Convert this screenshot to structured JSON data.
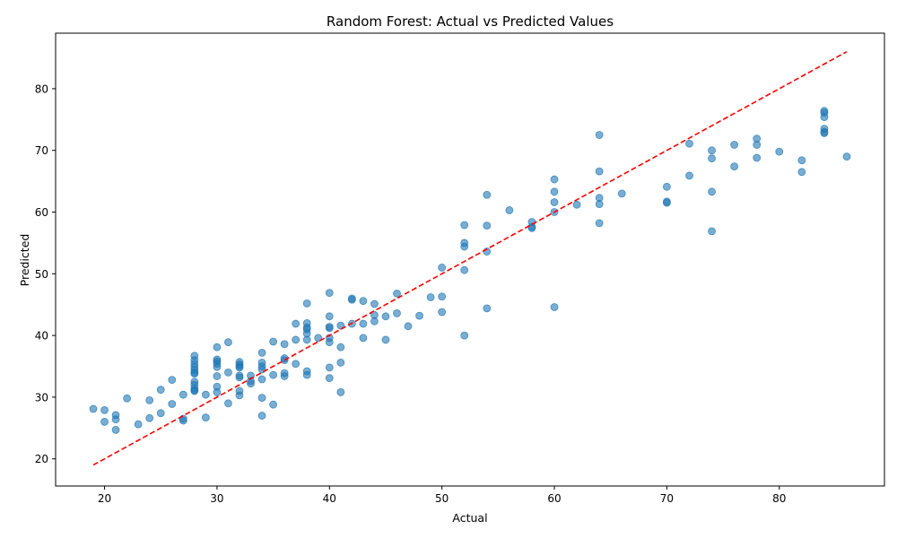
{
  "chart_data": {
    "type": "scatter",
    "title": "Random Forest: Actual vs Predicted Values",
    "xlabel": "Actual",
    "ylabel": "Predicted",
    "xlim": [
      15.65,
      89.35
    ],
    "ylim": [
      15.6,
      89.0
    ],
    "x_ticks": [
      20,
      30,
      40,
      50,
      60,
      70,
      80
    ],
    "y_ticks": [
      20,
      30,
      40,
      50,
      60,
      70,
      80
    ],
    "grid": false,
    "legend": "none",
    "colors": {
      "points": "#1f77b4",
      "reference_line": "#ff0000"
    },
    "reference_line": {
      "from": [
        19,
        19
      ],
      "to": [
        86,
        86
      ],
      "style": "dashed"
    },
    "points": [
      [
        19,
        28.1
      ],
      [
        20,
        27.9
      ],
      [
        20,
        26.0
      ],
      [
        21,
        27.1
      ],
      [
        21,
        26.4
      ],
      [
        21,
        24.7
      ],
      [
        22,
        29.8
      ],
      [
        23,
        25.6
      ],
      [
        24,
        29.5
      ],
      [
        24,
        26.6
      ],
      [
        25,
        31.2
      ],
      [
        25,
        27.4
      ],
      [
        26,
        32.8
      ],
      [
        26,
        28.9
      ],
      [
        27,
        30.4
      ],
      [
        27,
        26.5
      ],
      [
        27,
        26.2
      ],
      [
        28,
        36.7
      ],
      [
        28,
        36.0
      ],
      [
        28,
        35.4
      ],
      [
        28,
        34.9
      ],
      [
        28,
        34.4
      ],
      [
        28,
        34.0
      ],
      [
        28,
        33.8
      ],
      [
        28,
        32.5
      ],
      [
        28,
        32.0
      ],
      [
        28,
        31.4
      ],
      [
        28,
        31.1
      ],
      [
        28,
        31.0
      ],
      [
        29,
        30.4
      ],
      [
        29,
        26.7
      ],
      [
        30,
        38.1
      ],
      [
        30,
        36.1
      ],
      [
        30,
        35.8
      ],
      [
        30,
        35.4
      ],
      [
        30,
        34.9
      ],
      [
        30,
        33.4
      ],
      [
        30,
        31.7
      ],
      [
        30,
        30.8
      ],
      [
        31,
        38.9
      ],
      [
        31,
        34.0
      ],
      [
        31,
        29.0
      ],
      [
        32,
        35.7
      ],
      [
        32,
        35.3
      ],
      [
        32,
        35.0
      ],
      [
        32,
        34.8
      ],
      [
        32,
        33.5
      ],
      [
        32,
        33.2
      ],
      [
        32,
        31.0
      ],
      [
        32,
        30.3
      ],
      [
        33,
        33.5
      ],
      [
        33,
        32.6
      ],
      [
        33,
        32.2
      ],
      [
        34,
        37.2
      ],
      [
        34,
        35.6
      ],
      [
        34,
        35.0
      ],
      [
        34,
        34.5
      ],
      [
        34,
        32.9
      ],
      [
        34,
        29.9
      ],
      [
        34,
        27.0
      ],
      [
        35,
        39.0
      ],
      [
        35,
        33.6
      ],
      [
        35,
        28.8
      ],
      [
        36,
        38.6
      ],
      [
        36,
        36.3
      ],
      [
        36,
        36.0
      ],
      [
        36,
        33.9
      ],
      [
        36,
        33.4
      ],
      [
        37,
        41.9
      ],
      [
        37,
        39.3
      ],
      [
        37,
        35.4
      ],
      [
        38,
        45.2
      ],
      [
        38,
        42.0
      ],
      [
        38,
        41.3
      ],
      [
        38,
        41.0
      ],
      [
        38,
        40.3
      ],
      [
        38,
        39.3
      ],
      [
        38,
        34.2
      ],
      [
        38,
        33.6
      ],
      [
        39,
        39.6
      ],
      [
        40,
        46.9
      ],
      [
        40,
        43.1
      ],
      [
        40,
        41.4
      ],
      [
        40,
        41.2
      ],
      [
        40,
        39.6
      ],
      [
        40,
        38.9
      ],
      [
        40,
        34.8
      ],
      [
        40,
        33.1
      ],
      [
        41,
        41.6
      ],
      [
        41,
        38.1
      ],
      [
        41,
        35.6
      ],
      [
        41,
        30.8
      ],
      [
        42,
        46.0
      ],
      [
        42,
        45.8
      ],
      [
        42,
        41.9
      ],
      [
        43,
        45.6
      ],
      [
        43,
        41.9
      ],
      [
        43,
        39.6
      ],
      [
        44,
        45.1
      ],
      [
        44,
        43.3
      ],
      [
        44,
        42.3
      ],
      [
        45,
        43.1
      ],
      [
        45,
        39.3
      ],
      [
        46,
        46.8
      ],
      [
        46,
        43.6
      ],
      [
        47,
        41.5
      ],
      [
        48,
        43.2
      ],
      [
        49,
        46.2
      ],
      [
        50,
        51.0
      ],
      [
        50,
        46.3
      ],
      [
        50,
        43.8
      ],
      [
        52,
        57.9
      ],
      [
        52,
        55.0
      ],
      [
        52,
        54.4
      ],
      [
        52,
        50.6
      ],
      [
        52,
        40.0
      ],
      [
        54,
        62.8
      ],
      [
        54,
        57.8
      ],
      [
        54,
        53.6
      ],
      [
        54,
        44.4
      ],
      [
        56,
        60.3
      ],
      [
        58,
        58.4
      ],
      [
        58,
        57.6
      ],
      [
        58,
        57.4
      ],
      [
        60,
        65.3
      ],
      [
        60,
        63.3
      ],
      [
        60,
        61.6
      ],
      [
        60,
        60.0
      ],
      [
        60,
        44.6
      ],
      [
        62,
        61.2
      ],
      [
        64,
        72.5
      ],
      [
        64,
        66.6
      ],
      [
        64,
        62.3
      ],
      [
        64,
        61.3
      ],
      [
        64,
        58.2
      ],
      [
        66,
        63.0
      ],
      [
        70,
        64.1
      ],
      [
        70,
        61.7
      ],
      [
        70,
        61.5
      ],
      [
        72,
        71.1
      ],
      [
        72,
        65.9
      ],
      [
        74,
        70.0
      ],
      [
        74,
        68.7
      ],
      [
        74,
        63.3
      ],
      [
        74,
        56.9
      ],
      [
        76,
        70.9
      ],
      [
        76,
        67.4
      ],
      [
        78,
        71.9
      ],
      [
        78,
        70.9
      ],
      [
        78,
        68.8
      ],
      [
        80,
        69.8
      ],
      [
        82,
        68.4
      ],
      [
        82,
        66.5
      ],
      [
        84,
        76.4
      ],
      [
        84,
        76.1
      ],
      [
        84,
        75.4
      ],
      [
        84,
        73.5
      ],
      [
        84,
        73.0
      ],
      [
        84,
        72.8
      ],
      [
        86,
        69.0
      ]
    ]
  }
}
